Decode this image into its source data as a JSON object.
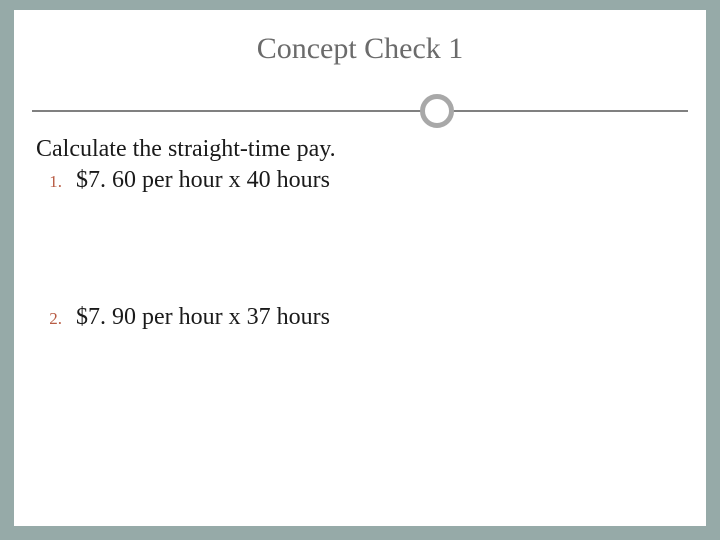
{
  "slide": {
    "background_color": "#96aaa8",
    "panel_color": "#ffffff",
    "title": "Concept Check 1",
    "title_color": "#6b6b6b",
    "title_fontsize": 30,
    "divider_color": "#808080",
    "ring_color": "#a8a8a8",
    "prompt": "Calculate the straight-time pay.",
    "text_color": "#1a1a1a",
    "body_fontsize": 24,
    "marker_color": "#b85c44",
    "marker_fontsize": 17,
    "items": [
      {
        "marker": "1.",
        "text": "$7. 60 per hour x 40 hours"
      },
      {
        "marker": "2.",
        "text": "$7. 90 per hour x 37 hours"
      }
    ]
  }
}
